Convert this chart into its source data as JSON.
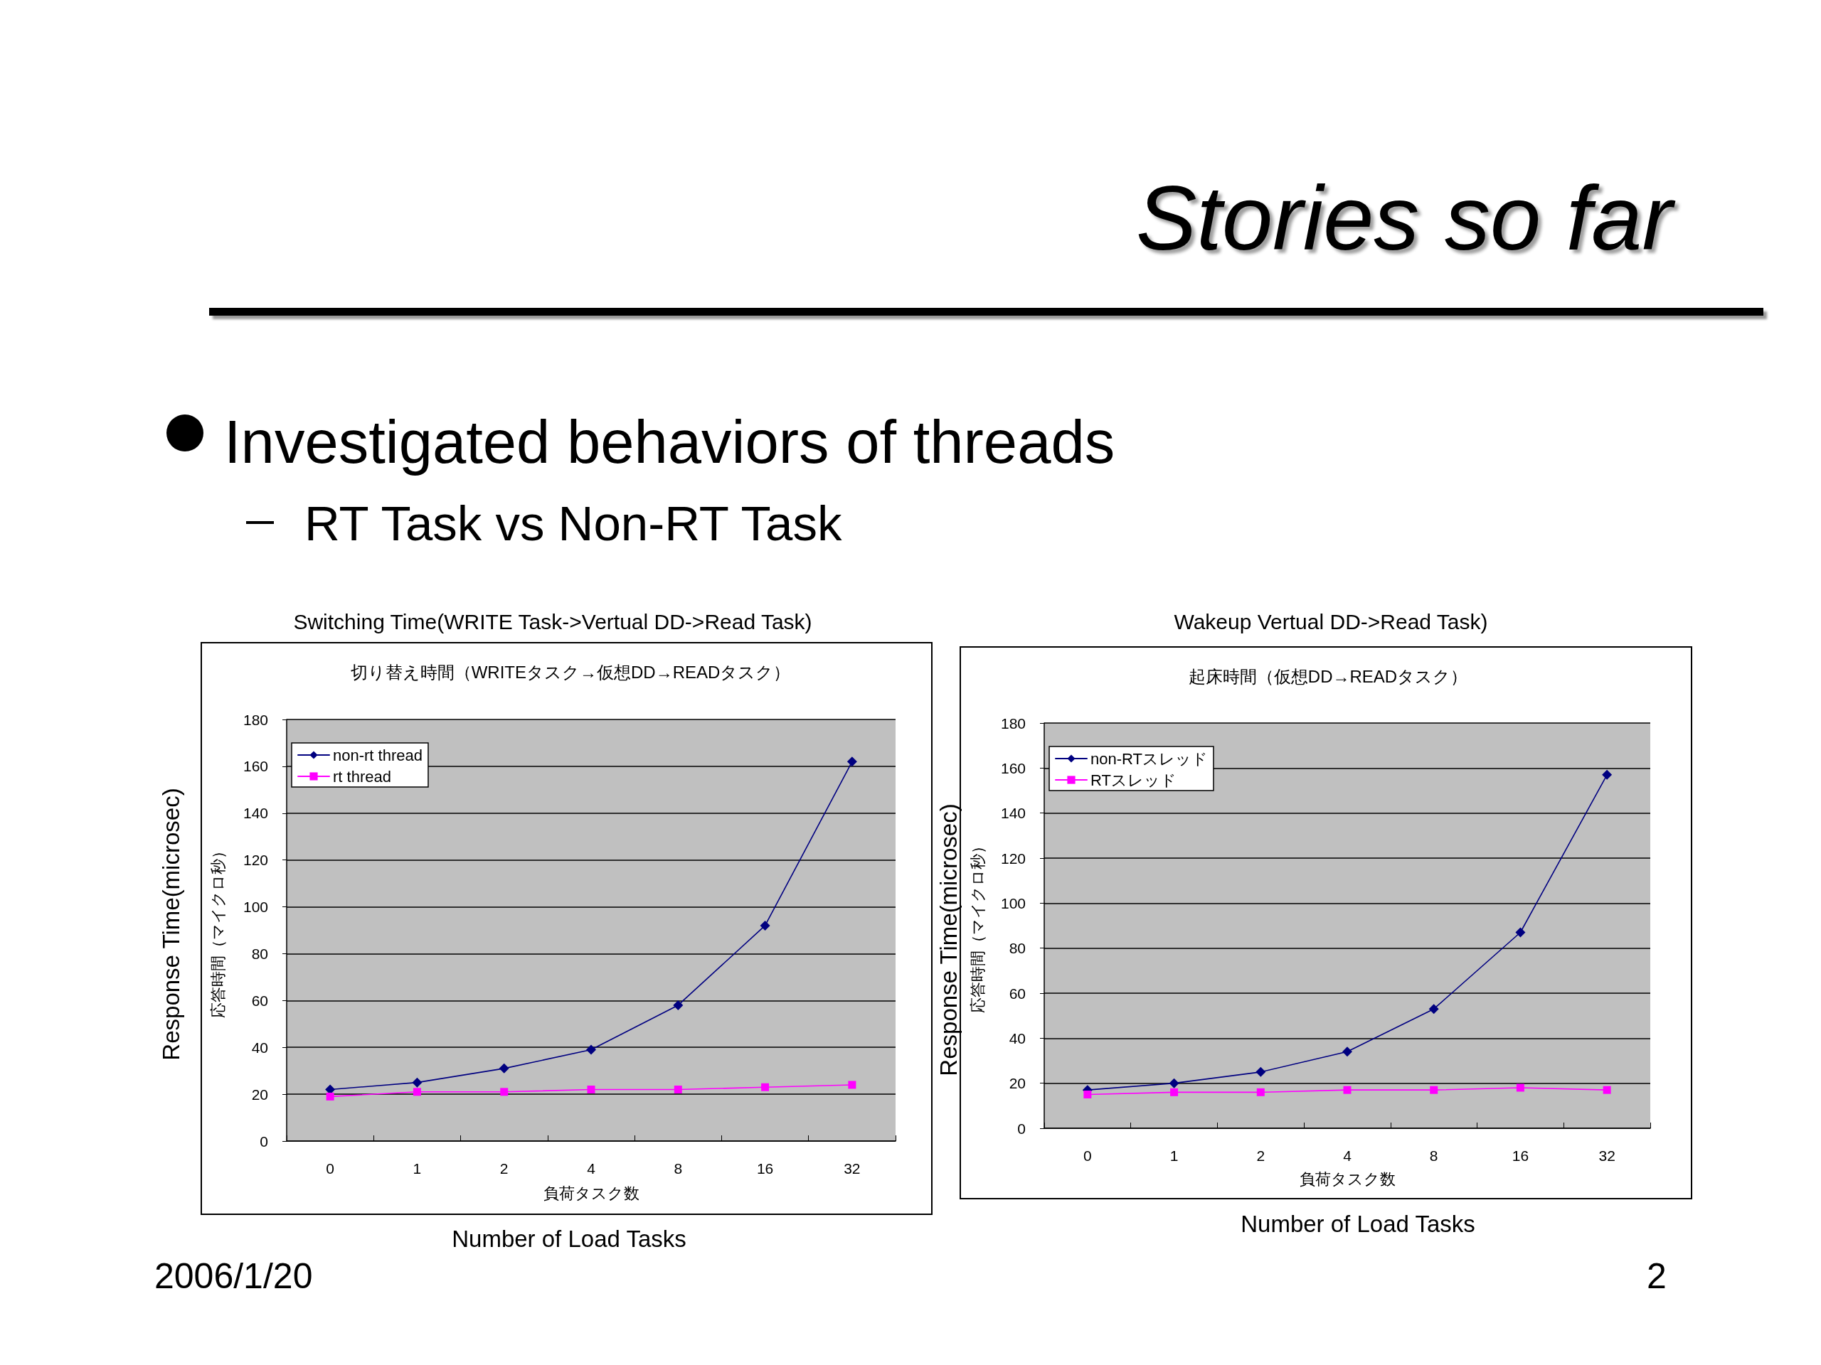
{
  "chart_data": [
    {
      "type": "line",
      "title": "Switching Time(WRITE Task->Vertual DD->Read Task)",
      "subtitle": "切り替え時間（WRITEタスク→仮想DD→READタスク）",
      "xlabel": "負荷タスク数",
      "ylabel": "応答時間（マイクロ秒）",
      "annotations": [
        "Response Time(microsec)",
        "Number of Load Tasks",
        "Stories so far",
        "Investigated behaviors of threads",
        "RT Task vs Non-RT Task"
      ],
      "categories": [
        "0",
        "1",
        "2",
        "4",
        "8",
        "16",
        "32"
      ],
      "series": [
        {
          "name": "non-rt thread",
          "color": "#000080",
          "marker": "diamond",
          "values": [
            22,
            25,
            31,
            39,
            58,
            92,
            162
          ]
        },
        {
          "name": "rt thread",
          "color": "#ff00ff",
          "marker": "square",
          "values": [
            19,
            21,
            21,
            22,
            22,
            23,
            24
          ]
        }
      ],
      "ylim": [
        0,
        180
      ],
      "yticks": [
        0,
        20,
        40,
        60,
        80,
        100,
        120,
        140,
        160,
        180
      ],
      "grid": "y",
      "legend": "top left"
    },
    {
      "type": "line",
      "title": "Wakeup Vertual DD->Read Task)",
      "subtitle": "起床時間（仮想DD→READタスク）",
      "xlabel": "負荷タスク数",
      "ylabel": "応答時間（マイクロ秒）",
      "annotations": [
        "Response Time(microsec)",
        "Number of Load Tasks",
        "2006/1/20",
        "2"
      ],
      "categories": [
        "0",
        "1",
        "2",
        "4",
        "8",
        "16",
        "32"
      ],
      "series": [
        {
          "name": "non-RTスレッド",
          "color": "#000080",
          "marker": "diamond",
          "values": [
            17,
            20,
            25,
            34,
            53,
            87,
            157
          ]
        },
        {
          "name": "RTスレッド",
          "color": "#ff00ff",
          "marker": "square",
          "values": [
            15,
            16,
            16,
            17,
            17,
            18,
            17
          ]
        }
      ],
      "ylim": [
        0,
        180
      ],
      "yticks": [
        0,
        20,
        40,
        60,
        80,
        100,
        120,
        140,
        160,
        180
      ],
      "grid": "y",
      "legend": "top left"
    }
  ]
}
